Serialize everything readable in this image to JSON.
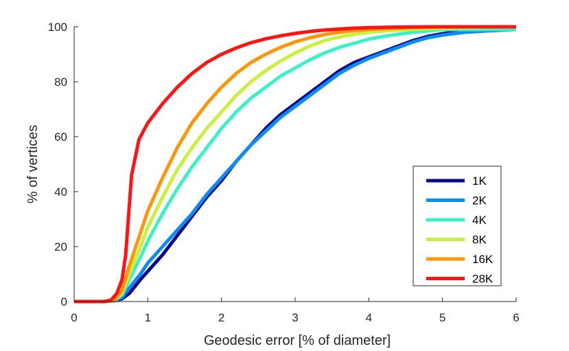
{
  "chart_data": {
    "type": "line",
    "title": "",
    "xlabel": "Geodesic error [% of diameter]",
    "ylabel": "% of vertices",
    "xlim": [
      0,
      6
    ],
    "ylim": [
      0,
      100
    ],
    "x_ticks": [
      "0",
      "1",
      "2",
      "3",
      "4",
      "5",
      "6"
    ],
    "y_ticks": [
      "0",
      "20",
      "40",
      "60",
      "80",
      "100"
    ],
    "grid": false,
    "legend_position": "right",
    "series": [
      {
        "name": "1K",
        "color": "#0a0a8c",
        "x": [
          0,
          0.4,
          0.55,
          0.65,
          0.75,
          0.9,
          1.0,
          1.2,
          1.4,
          1.6,
          1.8,
          2.0,
          2.2,
          2.4,
          2.6,
          2.8,
          3.0,
          3.2,
          3.4,
          3.6,
          3.8,
          4.0,
          4.2,
          4.4,
          4.6,
          4.8,
          5.0,
          5.3,
          5.6,
          6.0
        ],
        "y": [
          0,
          0,
          0.3,
          1,
          3,
          8,
          11,
          17,
          24,
          31,
          38,
          44,
          51,
          57,
          63,
          68,
          72,
          76,
          80,
          84,
          87,
          89,
          91,
          93,
          95,
          96.5,
          97.5,
          98.5,
          99,
          99
        ]
      },
      {
        "name": "2K",
        "color": "#0a8cf0",
        "x": [
          0,
          0.4,
          0.55,
          0.65,
          0.75,
          0.9,
          1.0,
          1.2,
          1.4,
          1.6,
          1.8,
          2.0,
          2.2,
          2.4,
          2.6,
          2.8,
          3.0,
          3.2,
          3.4,
          3.6,
          3.8,
          4.0,
          4.2,
          4.4,
          4.6,
          4.8,
          5.0,
          5.3,
          5.6,
          6.0
        ],
        "y": [
          0,
          0,
          0.3,
          1.5,
          5,
          10,
          14,
          20,
          26,
          32,
          39,
          45,
          51,
          57,
          62,
          67,
          71,
          75,
          79,
          83,
          86,
          88.5,
          90.5,
          92.5,
          94.5,
          96,
          97,
          98,
          98.5,
          99
        ]
      },
      {
        "name": "4K",
        "color": "#3cf0c8",
        "x": [
          0,
          0.4,
          0.55,
          0.65,
          0.75,
          0.9,
          1.0,
          1.2,
          1.4,
          1.6,
          1.8,
          2.0,
          2.2,
          2.4,
          2.6,
          2.8,
          3.0,
          3.2,
          3.4,
          3.6,
          3.8,
          4.0,
          4.2,
          4.4,
          4.6,
          4.8,
          5.0,
          5.5,
          6.0
        ],
        "y": [
          0,
          0,
          0.5,
          2.5,
          8,
          16,
          22,
          32,
          41,
          49,
          56,
          63,
          69,
          74,
          78,
          82,
          85,
          88,
          90.5,
          92.5,
          94,
          95.5,
          96.5,
          97.3,
          98,
          98.5,
          99,
          99,
          99
        ]
      },
      {
        "name": "8K",
        "color": "#c8f03c",
        "x": [
          0,
          0.4,
          0.55,
          0.65,
          0.75,
          0.9,
          1.0,
          1.2,
          1.4,
          1.6,
          1.8,
          2.0,
          2.2,
          2.4,
          2.6,
          2.8,
          3.0,
          3.2,
          3.4,
          3.6,
          3.8,
          4.0,
          4.3,
          4.6,
          5.0,
          5.5,
          6.0
        ],
        "y": [
          0,
          0,
          0.5,
          3,
          10,
          20,
          27,
          38,
          48,
          56,
          63,
          69,
          75,
          80,
          84,
          87.5,
          90.5,
          93,
          95,
          96.3,
          97.3,
          98,
          98.7,
          99.1,
          99.5,
          99.8,
          100
        ]
      },
      {
        "name": "16K",
        "color": "#ff960a",
        "x": [
          0,
          0.4,
          0.55,
          0.65,
          0.75,
          0.9,
          1.0,
          1.2,
          1.4,
          1.6,
          1.8,
          2.0,
          2.2,
          2.4,
          2.6,
          2.8,
          3.0,
          3.2,
          3.4,
          3.6,
          3.8,
          4.0,
          4.3,
          4.6,
          5.0,
          5.5,
          6.0
        ],
        "y": [
          0,
          0,
          0.5,
          4,
          13,
          25,
          33,
          45,
          56,
          65,
          72,
          78,
          83,
          87,
          90,
          92.5,
          94.5,
          96,
          97.2,
          98,
          98.6,
          99,
          99.4,
          99.7,
          99.9,
          100,
          100
        ]
      },
      {
        "name": "28K",
        "color": "#ff1414",
        "x": [
          0,
          0.4,
          0.5,
          0.58,
          0.65,
          0.7,
          0.78,
          0.88,
          1.0,
          1.2,
          1.4,
          1.6,
          1.8,
          2.0,
          2.2,
          2.4,
          2.6,
          2.8,
          3.0,
          3.2,
          3.4,
          3.6,
          3.8,
          4.0,
          4.3,
          4.6,
          5.0,
          5.5,
          6.0
        ],
        "y": [
          0,
          0,
          0.5,
          3,
          8,
          17,
          46,
          59,
          65,
          72,
          78,
          83,
          87,
          90,
          92.3,
          94.2,
          95.6,
          96.7,
          97.6,
          98.3,
          98.8,
          99.2,
          99.5,
          99.7,
          99.85,
          99.95,
          100,
          100,
          100
        ]
      }
    ]
  }
}
